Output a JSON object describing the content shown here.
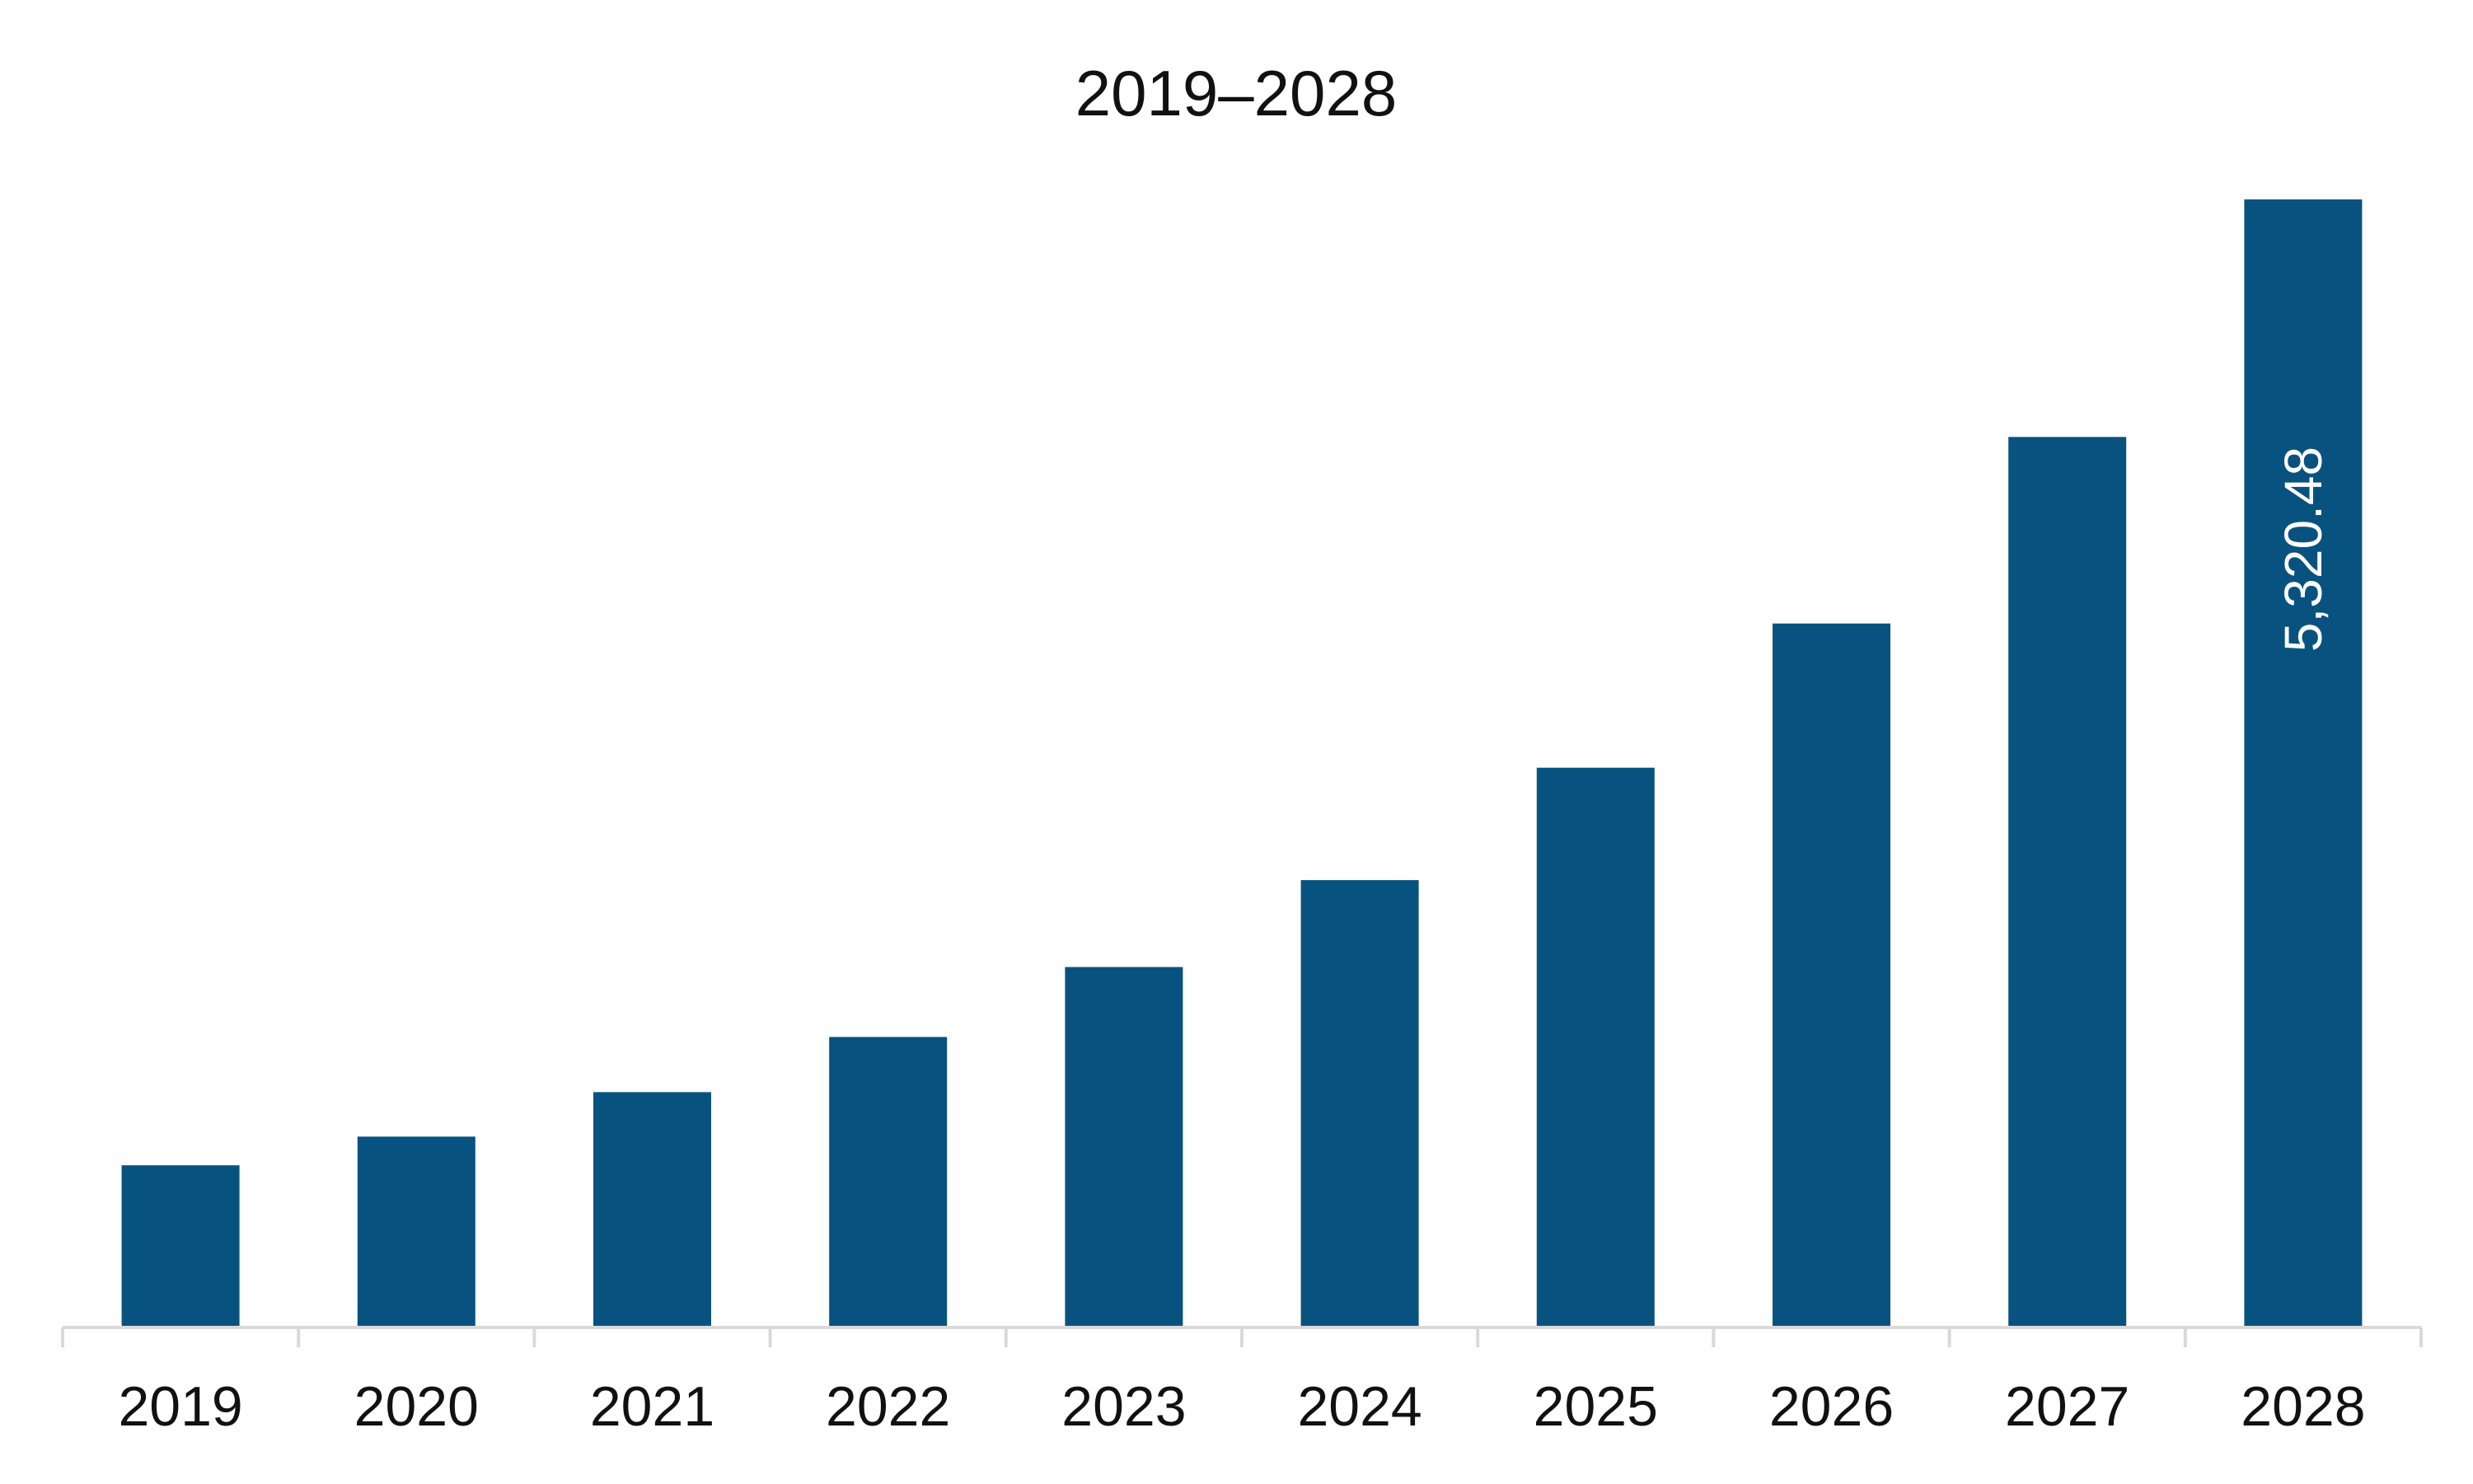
{
  "chart_data": {
    "type": "bar",
    "title": "2019–2028",
    "xlabel": "",
    "ylabel": "",
    "categories": [
      "2019",
      "2020",
      "2021",
      "2022",
      "2023",
      "2024",
      "2025",
      "2026",
      "2027",
      "2028"
    ],
    "values": [
      765,
      900,
      1110,
      1370,
      1700,
      2110,
      2640,
      3320,
      4200,
      5320.48
    ],
    "data_labels": [
      {
        "index": 9,
        "text": "5,320.48"
      }
    ],
    "ylim": [
      0,
      5320.48
    ],
    "grid": false,
    "legend": "none",
    "bar_color": "#08527F",
    "axis_color": "#D9D9D9"
  }
}
